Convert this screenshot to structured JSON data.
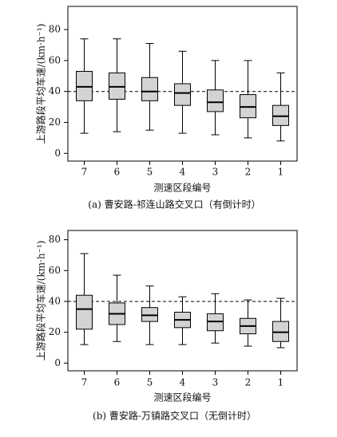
{
  "chart_data": [
    {
      "type": "box",
      "title": "(a) 曹安路-祁连山路交叉口（有倒计时）",
      "x_label": "测速区段编号",
      "y_label": "上游路段平均车速/(km·h⁻¹)",
      "categories": [
        "7",
        "6",
        "5",
        "4",
        "3",
        "2",
        "1"
      ],
      "whislo": [
        13,
        14,
        15,
        13,
        12,
        10,
        8
      ],
      "q1": [
        34,
        35,
        34,
        31,
        27,
        23,
        18
      ],
      "med": [
        43,
        43,
        40,
        39,
        33,
        30,
        24
      ],
      "q3": [
        53,
        52,
        49,
        45,
        41,
        38,
        31
      ],
      "whishi": [
        74,
        74,
        71,
        66,
        60,
        60,
        52
      ],
      "color": "#d3d3d3",
      "reference_line": 40,
      "ylim": [
        -5,
        95
      ],
      "yticks": [
        0,
        20,
        40,
        60,
        80
      ]
    },
    {
      "type": "box",
      "title": "(b) 曹安路-万镇路交叉口（无倒计时）",
      "x_label": "测速区段编号",
      "y_label": "上游路段平均车速/(km·h⁻¹)",
      "categories": [
        "7",
        "6",
        "5",
        "4",
        "3",
        "2",
        "1"
      ],
      "whislo": [
        12,
        14,
        12,
        12,
        13,
        11,
        10
      ],
      "q1": [
        22,
        25,
        27,
        23,
        21,
        19,
        14
      ],
      "med": [
        35,
        32,
        31,
        28,
        27,
        24,
        20
      ],
      "q3": [
        44,
        39,
        36,
        33,
        32,
        29,
        27
      ],
      "whishi": [
        71,
        57,
        50,
        43,
        45,
        41,
        42
      ],
      "color": "#d3d3d3",
      "reference_line": 40,
      "ylim": [
        -5,
        86
      ],
      "yticks": [
        0,
        20,
        40,
        60,
        80
      ]
    }
  ]
}
